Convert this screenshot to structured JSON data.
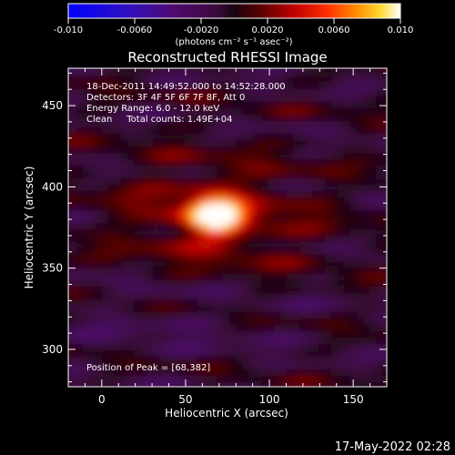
{
  "chart_data": {
    "type": "heatmap",
    "title": "Reconstructed RHESSI Image",
    "xlabel": "Heliocentric X (arcsec)",
    "ylabel": "Heliocentric Y (arcsec)",
    "xlim": [
      -20,
      170
    ],
    "ylim": [
      277,
      473
    ],
    "x_ticks": [
      0,
      50,
      100,
      150
    ],
    "y_ticks": [
      300,
      350,
      400,
      450
    ],
    "annotations": [
      "18-Dec-2011 14:49:52.000 to 14:52:28.000",
      "Detectors: 3F 4F 5F 6F 7F 8F, Att 0",
      "Energy Range: 6.0 - 12.0 keV",
      "Clean     Total counts: 1.49E+04"
    ],
    "peak_label": "Position of Peak = [68,382]",
    "peak": {
      "x": 68,
      "y": 382
    },
    "grid": false,
    "colorbar": {
      "min": -0.01,
      "max": 0.01,
      "ticks": [
        "-0.010",
        "-0.0060",
        "-0.0020",
        "0.0020",
        "0.0060",
        "0.010"
      ],
      "tick_values": [
        -0.01,
        -0.006,
        -0.002,
        0.002,
        0.006,
        0.01
      ],
      "unit": "(photons cm⁻² s⁻¹ asec⁻²)",
      "colors": [
        "#0000ff",
        "#3010c0",
        "#500a70",
        "#3a0a3a",
        "#1a0510",
        "#5a0000",
        "#c00000",
        "#ff3000",
        "#ff9000",
        "#ffd830",
        "#ffffff"
      ]
    },
    "timestamp": "17-May-2022 02:28"
  }
}
